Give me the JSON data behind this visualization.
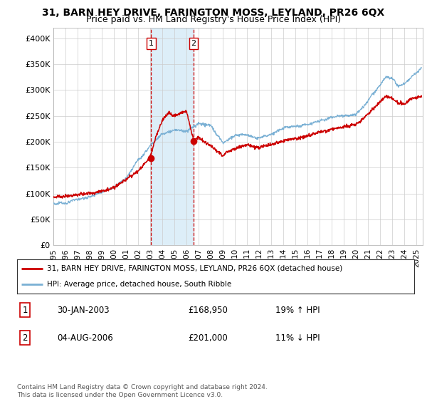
{
  "title": "31, BARN HEY DRIVE, FARINGTON MOSS, LEYLAND, PR26 6QX",
  "subtitle": "Price paid vs. HM Land Registry's House Price Index (HPI)",
  "ylabel_ticks": [
    "£0",
    "£50K",
    "£100K",
    "£150K",
    "£200K",
    "£250K",
    "£300K",
    "£350K",
    "£400K"
  ],
  "ytick_vals": [
    0,
    50000,
    100000,
    150000,
    200000,
    250000,
    300000,
    350000,
    400000
  ],
  "ylim": [
    0,
    420000
  ],
  "xlim_start": 1995.0,
  "xlim_end": 2025.5,
  "sale1_x": 2003.08,
  "sale1_y": 168950,
  "sale2_x": 2006.58,
  "sale2_y": 201000,
  "red_color": "#cc0000",
  "blue_color": "#7ab0d4",
  "shade_color": "#ddeef8",
  "legend_label_red": "31, BARN HEY DRIVE, FARINGTON MOSS, LEYLAND, PR26 6QX (detached house)",
  "legend_label_blue": "HPI: Average price, detached house, South Ribble",
  "sale1_date": "30-JAN-2003",
  "sale1_price": "£168,950",
  "sale1_hpi": "19% ↑ HPI",
  "sale2_date": "04-AUG-2006",
  "sale2_price": "£201,000",
  "sale2_hpi": "11% ↓ HPI",
  "footer": "Contains HM Land Registry data © Crown copyright and database right 2024.\nThis data is licensed under the Open Government Licence v3.0.",
  "title_fontsize": 10,
  "subtitle_fontsize": 9,
  "background_color": "#ffffff"
}
